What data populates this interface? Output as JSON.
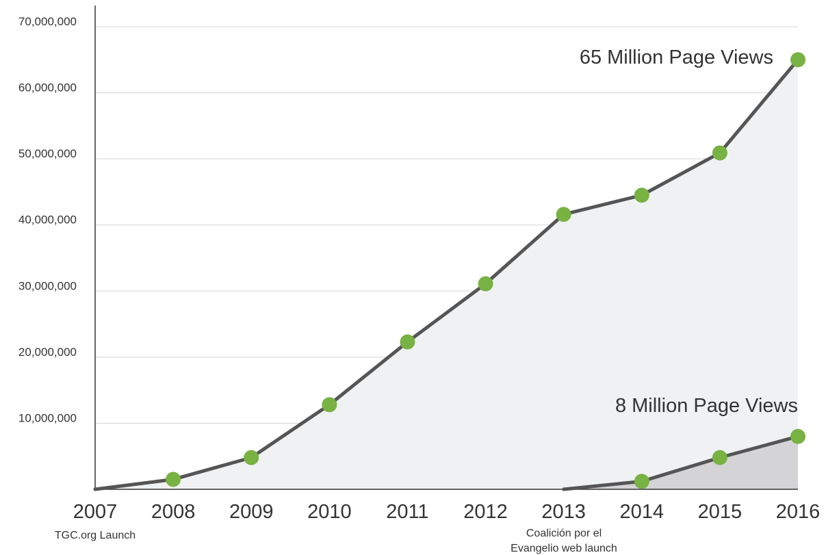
{
  "chart_data": {
    "type": "area",
    "categories": [
      "2007",
      "2008",
      "2009",
      "2010",
      "2011",
      "2012",
      "2013",
      "2014",
      "2015",
      "2016"
    ],
    "series": [
      {
        "values": [
          0,
          1500000,
          4800000,
          12800000,
          22300000,
          31100000,
          41600000,
          44500000,
          50900000,
          65000000
        ],
        "line_color": "#555555",
        "fill_color": "#f0f1f3",
        "marker_color": "#77b243"
      },
      {
        "values": [
          null,
          null,
          null,
          null,
          null,
          null,
          0,
          1200000,
          4800000,
          8000000
        ],
        "line_color": "#555555",
        "fill_color": "#d4d4d6",
        "marker_color": "#77b243"
      }
    ],
    "ylim": [
      0,
      70000000
    ],
    "yticks": [
      {
        "value": 10000000,
        "label": "10,000,000"
      },
      {
        "value": 20000000,
        "label": "20,000,000"
      },
      {
        "value": 30000000,
        "label": "30,000,000"
      },
      {
        "value": 40000000,
        "label": "40,000,000"
      },
      {
        "value": 50000000,
        "label": "50,000,000"
      },
      {
        "value": 60000000,
        "label": "60,000,000"
      },
      {
        "value": 70000000,
        "label": "70,000,000"
      }
    ],
    "grid": true,
    "annotations": {
      "top_series": "65 Million Page Views",
      "bottom_series": "8 Million Page Views",
      "tgc_launch": "TGC.org Launch",
      "coalicion_launch_line1": "Coalición por el",
      "coalicion_launch_line2": "Evangelio web launch"
    }
  }
}
